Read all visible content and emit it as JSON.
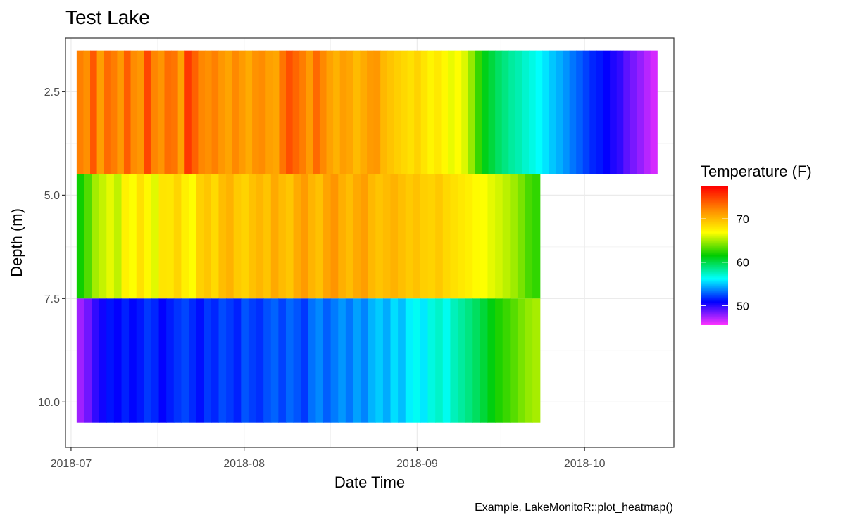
{
  "chart_data": {
    "type": "heatmap",
    "title": "Test Lake",
    "xlabel": "Date Time",
    "ylabel": "Depth (m)",
    "caption": "Example, LakeMonitoR::plot_heatmap()",
    "x_range": [
      "2018-06-30",
      "2018-10-17"
    ],
    "y_range": [
      1.2,
      11.1
    ],
    "y_reversed": true,
    "x_ticks": [
      "2018-07",
      "2018-08",
      "2018-09",
      "2018-10"
    ],
    "y_ticks": [
      2.5,
      5.0,
      7.5,
      10.0
    ],
    "y_tick_labels": [
      "2.5",
      "5.0",
      "7.5",
      "10.0"
    ],
    "grid": true,
    "layers": [
      {
        "depth_top": 1.5,
        "depth_bottom": 4.5,
        "start": "2018-07-02",
        "end": "2018-10-14",
        "temps": [
          72.5,
          71.8,
          74.1,
          71.2,
          73.3,
          72.6,
          71.4,
          73.8,
          72.0,
          71.5,
          74.7,
          72.3,
          71.6,
          73.2,
          72.9,
          71.0,
          75.3,
          73.7,
          72.2,
          71.8,
          72.5,
          71.5,
          70.9,
          72.1,
          71.3,
          70.6,
          71.7,
          72.0,
          71.1,
          70.8,
          72.9,
          74.4,
          73.5,
          72.6,
          71.3,
          73.4,
          72.1,
          71.0,
          70.3,
          71.2,
          70.8,
          69.9,
          70.6,
          71.3,
          71.5,
          70.0,
          69.5,
          69.0,
          68.6,
          68.2,
          68.8,
          68.0,
          67.3,
          67.8,
          67.1,
          66.4,
          66.9,
          66.1,
          64.6,
          62.6,
          61.0,
          60.2,
          59.4,
          58.8,
          58.2,
          57.8,
          57.2,
          56.7,
          56.2,
          55.6,
          55.0,
          54.5,
          53.9,
          53.3,
          52.8,
          52.2,
          51.6,
          51.3,
          50.8,
          50.2,
          49.8,
          48.9,
          48.3,
          47.7,
          47.0,
          46.4
        ]
      },
      {
        "depth_top": 4.5,
        "depth_bottom": 7.5,
        "start": "2018-07-02",
        "end": "2018-09-23",
        "temps": [
          61.8,
          63.2,
          64.9,
          65.6,
          66.3,
          65.5,
          67.4,
          66.8,
          68.2,
          67.1,
          66.2,
          68.0,
          67.9,
          68.7,
          67.5,
          66.9,
          68.9,
          69.4,
          68.5,
          69.8,
          70.3,
          69.2,
          68.8,
          69.6,
          70.1,
          69.5,
          70.7,
          69.9,
          69.4,
          70.6,
          71.3,
          70.2,
          69.6,
          70.9,
          71.6,
          70.4,
          69.8,
          70.7,
          71.2,
          70.0,
          69.5,
          69.9,
          70.3,
          69.7,
          69.2,
          69.6,
          69.0,
          68.8,
          69.3,
          68.6,
          68.2,
          67.8,
          67.5,
          67.0,
          66.8,
          66.3,
          65.9,
          65.4,
          64.8,
          64.0,
          63.0,
          62.5
        ]
      },
      {
        "depth_top": 7.5,
        "depth_bottom": 10.5,
        "start": "2018-07-02",
        "end": "2018-09-23",
        "temps": [
          47.5,
          48.5,
          49.8,
          50.5,
          51.2,
          50.8,
          51.5,
          50.9,
          51.3,
          52.0,
          51.6,
          50.8,
          51.4,
          51.9,
          52.3,
          51.7,
          51.1,
          52.0,
          51.6,
          52.4,
          52.0,
          51.5,
          52.6,
          52.1,
          51.8,
          52.5,
          52.9,
          52.2,
          53.0,
          52.6,
          52.0,
          53.2,
          53.7,
          52.8,
          53.4,
          54.0,
          53.3,
          54.2,
          53.6,
          54.6,
          55.1,
          54.4,
          55.5,
          54.8,
          55.9,
          56.4,
          55.7,
          56.8,
          57.3,
          56.5,
          57.6,
          58.2,
          58.8,
          59.5,
          60.3,
          61.2,
          62.1,
          62.7,
          63.3,
          64.0,
          64.6,
          65.0
        ]
      }
    ],
    "legend": {
      "title": "Temperature (F)",
      "placement": "right",
      "min": 45.5,
      "max": 77.5,
      "ticks": [
        50,
        60,
        70
      ],
      "tick_labels": [
        "50",
        "60",
        "70"
      ],
      "colors": [
        "#ff33ff",
        "#0000ff",
        "#00ffff",
        "#00cc00",
        "#ffff00",
        "#ff8800",
        "#ff0000"
      ]
    }
  }
}
